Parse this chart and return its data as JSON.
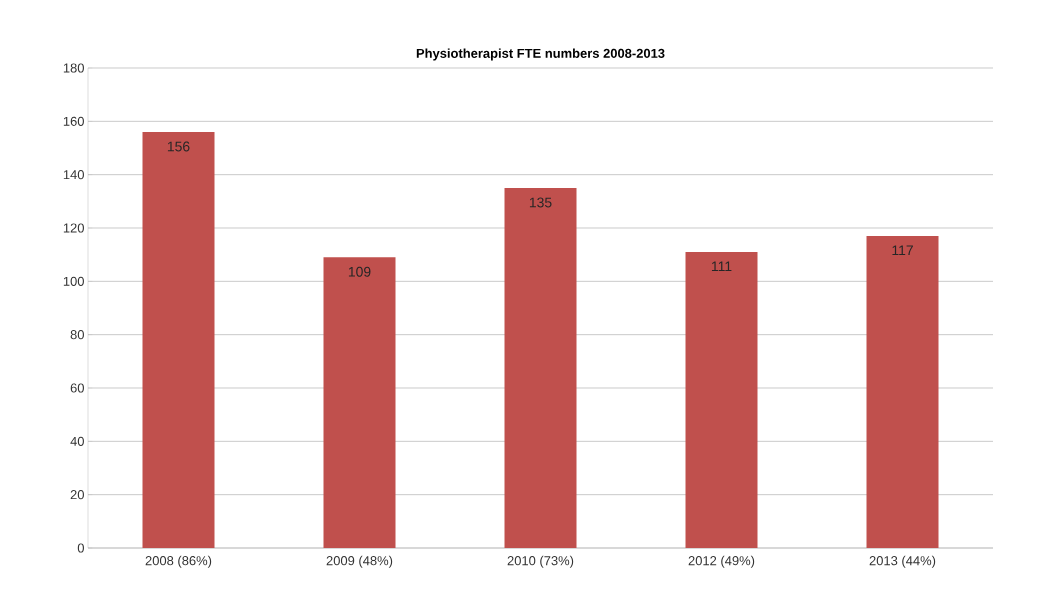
{
  "chart_data": {
    "type": "bar",
    "title": "Physiotherapist FTE numbers 2008-2013",
    "categories": [
      "2008 (86%)",
      "2009 (48%)",
      "2010 (73%)",
      "2012 (49%)",
      "2013 (44%)"
    ],
    "values": [
      156,
      109,
      135,
      111,
      117
    ],
    "color": "#c0504d",
    "ylim": [
      0,
      180
    ],
    "yticks": [
      0,
      20,
      40,
      60,
      80,
      100,
      120,
      140,
      160,
      180
    ],
    "grid": "y",
    "data_labels": true
  }
}
